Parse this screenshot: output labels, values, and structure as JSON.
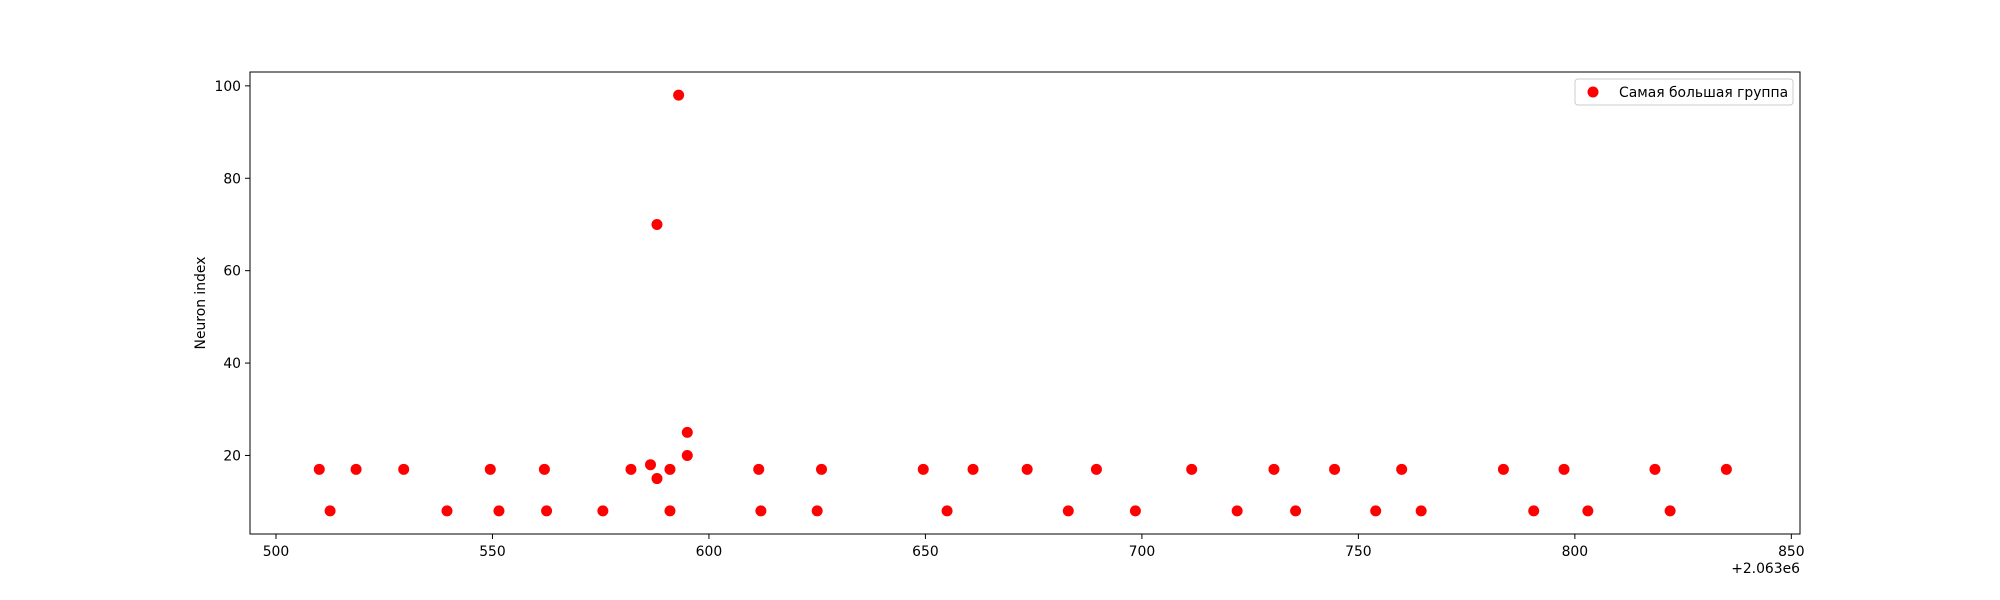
{
  "chart_data": {
    "type": "scatter",
    "title": "",
    "xlabel": "",
    "ylabel": "Neuron index",
    "x_offset_label": "+2.063e6",
    "xlim": [
      494,
      852
    ],
    "ylim": [
      3,
      103
    ],
    "x_ticks": [
      500,
      550,
      600,
      650,
      700,
      750,
      800,
      850
    ],
    "y_ticks": [
      20,
      40,
      60,
      80,
      100
    ],
    "grid": false,
    "legend_position": "upper right",
    "series": [
      {
        "name": "Самая большая группа",
        "color": "#ff0000",
        "marker": "circle",
        "points": [
          {
            "x": 510,
            "y": 17
          },
          {
            "x": 512.5,
            "y": 8
          },
          {
            "x": 518.5,
            "y": 17
          },
          {
            "x": 529.5,
            "y": 17
          },
          {
            "x": 539.5,
            "y": 8
          },
          {
            "x": 549.5,
            "y": 17
          },
          {
            "x": 551.5,
            "y": 8
          },
          {
            "x": 562,
            "y": 17
          },
          {
            "x": 562.5,
            "y": 8
          },
          {
            "x": 575.5,
            "y": 8
          },
          {
            "x": 582,
            "y": 17
          },
          {
            "x": 586.5,
            "y": 18
          },
          {
            "x": 588,
            "y": 70
          },
          {
            "x": 588,
            "y": 15
          },
          {
            "x": 591,
            "y": 17
          },
          {
            "x": 591,
            "y": 8
          },
          {
            "x": 593,
            "y": 98
          },
          {
            "x": 595,
            "y": 25
          },
          {
            "x": 595,
            "y": 20
          },
          {
            "x": 611.5,
            "y": 17
          },
          {
            "x": 612,
            "y": 8
          },
          {
            "x": 625,
            "y": 8
          },
          {
            "x": 626,
            "y": 17
          },
          {
            "x": 649.5,
            "y": 17
          },
          {
            "x": 655,
            "y": 8
          },
          {
            "x": 661,
            "y": 17
          },
          {
            "x": 673.5,
            "y": 17
          },
          {
            "x": 683,
            "y": 8
          },
          {
            "x": 689.5,
            "y": 17
          },
          {
            "x": 698.5,
            "y": 8
          },
          {
            "x": 711.5,
            "y": 17
          },
          {
            "x": 722,
            "y": 8
          },
          {
            "x": 730.5,
            "y": 17
          },
          {
            "x": 735.5,
            "y": 8
          },
          {
            "x": 744.5,
            "y": 17
          },
          {
            "x": 754,
            "y": 8
          },
          {
            "x": 760,
            "y": 17
          },
          {
            "x": 764.5,
            "y": 8
          },
          {
            "x": 783.5,
            "y": 17
          },
          {
            "x": 790.5,
            "y": 8
          },
          {
            "x": 797.5,
            "y": 17
          },
          {
            "x": 803,
            "y": 8
          },
          {
            "x": 818.5,
            "y": 17
          },
          {
            "x": 822,
            "y": 8
          },
          {
            "x": 835,
            "y": 17
          }
        ]
      }
    ]
  }
}
